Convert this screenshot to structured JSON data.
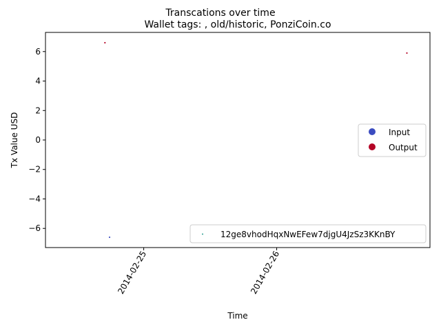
{
  "chart_data": {
    "type": "scatter",
    "title": "Transcations over time",
    "subtitle": "Wallet tags: , old/historic, PonziCoin.co",
    "xlabel": "Time",
    "ylabel": "Tx Value USD",
    "x_axis": {
      "kind": "date",
      "range": [
        "2014-02-24T06:16",
        "2014-02-27T03:40"
      ],
      "ticks": [
        "2014-02-25",
        "2014-02-26"
      ]
    },
    "y_axis": {
      "range": [
        -7.3,
        7.3
      ],
      "ticks": [
        6,
        4,
        2,
        0,
        -2,
        -4,
        -6
      ],
      "tick_labels": [
        "6",
        "4",
        "2",
        "0",
        "−2",
        "−4",
        "−6"
      ]
    },
    "series": [
      {
        "name": "Input",
        "color": "#3b4cc0",
        "points": [
          {
            "x": "2014-02-24T17:50",
            "y": -6.6
          }
        ]
      },
      {
        "name": "Output",
        "color": "#b40426",
        "points": [
          {
            "x": "2014-02-24T17:00",
            "y": 6.6
          },
          {
            "x": "2014-02-26T23:30",
            "y": 5.9
          }
        ]
      }
    ],
    "legends": [
      {
        "placement": "center-right",
        "entries": [
          {
            "label": "Input",
            "color": "#3b4cc0",
            "marker": "circle"
          },
          {
            "label": "Output",
            "color": "#b40426",
            "marker": "circle"
          }
        ]
      },
      {
        "placement": "lower-right",
        "entries": [
          {
            "label": "12ge8vhodHqxNwEFew7djgU4JzSz3KKnBY",
            "color": "#2a9d8f",
            "marker": "dot"
          }
        ]
      }
    ],
    "grid": false
  }
}
